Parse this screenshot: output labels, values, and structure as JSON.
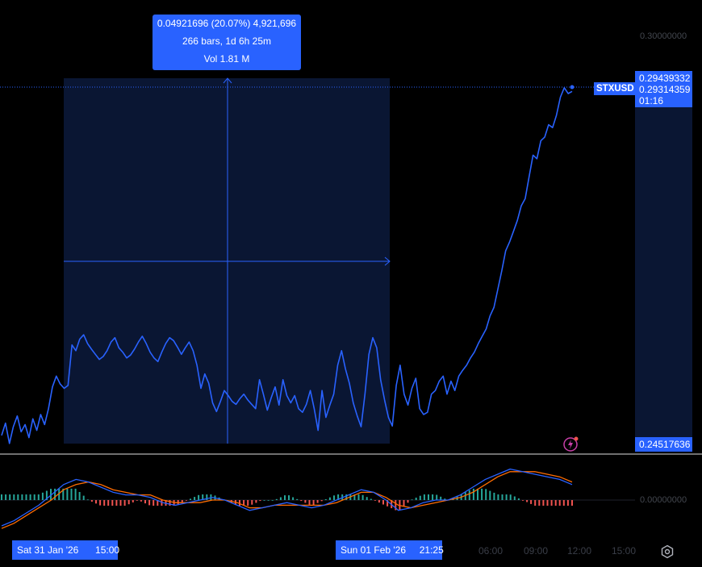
{
  "symbol": "STXUSD",
  "last_price": "0.29439332",
  "bid_price": "0.29314359",
  "countdown": "01:16",
  "low_price": "0.24517636",
  "measure": {
    "line1": "0.04921696 (20.07%) 4,921,696",
    "line2": "266 bars, 1d 6h 25m",
    "line3": "Vol 1.81 M"
  },
  "axis": {
    "top_label": "0.30000000",
    "macd_zero": "0.00000000"
  },
  "time_axis": {
    "start_date": "Sat 31 Jan '26",
    "start_time": "15:00",
    "end_date": "Sun 01 Feb '26",
    "end_time": "21:25",
    "ticks": [
      "06:00",
      "09:00",
      "12:00",
      "15:00"
    ]
  },
  "colors": {
    "price_line": "#2962ff",
    "macd_line": "#2962ff",
    "signal_line": "#ff6d00",
    "hist_pos": "#26a69a",
    "hist_neg": "#ef5350",
    "selection": "#0a1633",
    "accent": "#2962ff"
  },
  "chart_data": {
    "type": "line",
    "series": [
      {
        "name": "STXUSD",
        "values": [
          0.2463,
          0.248,
          0.2452,
          0.2475,
          0.249,
          0.2468,
          0.2478,
          0.246,
          0.2486,
          0.247,
          0.2492,
          0.2478,
          0.25,
          0.253,
          0.2545,
          0.2534,
          0.2528,
          0.2532,
          0.2588,
          0.258,
          0.2596,
          0.2602,
          0.259,
          0.2582,
          0.2575,
          0.2568,
          0.2572,
          0.258,
          0.2592,
          0.2598,
          0.2584,
          0.2578,
          0.257,
          0.2574,
          0.2582,
          0.2592,
          0.26,
          0.259,
          0.2578,
          0.257,
          0.2565,
          0.2578,
          0.259,
          0.2598,
          0.2594,
          0.2585,
          0.2575,
          0.2584,
          0.2592,
          0.258,
          0.256,
          0.2528,
          0.2548,
          0.2535,
          0.2508,
          0.2496,
          0.251,
          0.2525,
          0.2518,
          0.251,
          0.2506,
          0.2514,
          0.252,
          0.2512,
          0.2506,
          0.25,
          0.254,
          0.252,
          0.2498,
          0.2515,
          0.253,
          0.2505,
          0.254,
          0.2518,
          0.2508,
          0.2518,
          0.25,
          0.2495,
          0.2506,
          0.2525,
          0.25,
          0.247,
          0.2525,
          0.2488,
          0.2505,
          0.252,
          0.256,
          0.258,
          0.2555,
          0.2535,
          0.2508,
          0.249,
          0.2475,
          0.252,
          0.2575,
          0.2598,
          0.2584,
          0.254,
          0.2512,
          0.2488,
          0.2476,
          0.2532,
          0.256,
          0.252,
          0.2505,
          0.2528,
          0.2542,
          0.25,
          0.2492,
          0.2495,
          0.252,
          0.2525,
          0.2538,
          0.2545,
          0.252,
          0.2538,
          0.2525,
          0.2545,
          0.2553,
          0.256,
          0.257,
          0.2578,
          0.259,
          0.26,
          0.261,
          0.2628,
          0.264,
          0.2665,
          0.269,
          0.2718,
          0.273,
          0.2745,
          0.276,
          0.278,
          0.279,
          0.282,
          0.285,
          0.2845,
          0.287,
          0.2875,
          0.2892,
          0.2888,
          0.2905,
          0.293,
          0.2943,
          0.2935,
          0.2938
        ]
      },
      {
        "name": "MACD",
        "values": [
          -0.001,
          -0.0008,
          -0.0005,
          -0.0002,
          0.0002,
          0.0006,
          0.0008,
          0.0007,
          0.0005,
          0.0003,
          0.0002,
          0.0002,
          0.0001,
          -0.0001,
          -0.0002,
          -0.0001,
          0.0,
          0.0001,
          0.0,
          -0.0002,
          -0.0004,
          -0.0003,
          -0.0002,
          -0.0001,
          -0.0002,
          -0.0003,
          -0.0002,
          0.0,
          0.0002,
          0.0004,
          0.0003,
          0.0,
          -0.0004,
          -0.0003,
          -0.0001,
          0.0,
          0.0,
          0.0002,
          0.0005,
          0.0008,
          0.001,
          0.0012,
          0.0011,
          0.001,
          0.0009,
          0.0008,
          0.0006
        ]
      },
      {
        "name": "Signal",
        "values": [
          -0.0011,
          -0.0009,
          -0.0006,
          -0.0003,
          0.0,
          0.0004,
          0.0006,
          0.0007,
          0.0006,
          0.0004,
          0.0003,
          0.0002,
          0.0002,
          0.0,
          -0.0001,
          -0.0001,
          -0.0001,
          0.0,
          0.0,
          -0.0001,
          -0.0003,
          -0.0003,
          -0.0002,
          -0.0002,
          -0.0002,
          -0.0002,
          -0.0002,
          -0.0001,
          0.0001,
          0.0003,
          0.0003,
          0.0001,
          -0.0002,
          -0.0003,
          -0.0002,
          -0.0001,
          0.0,
          0.0001,
          0.0003,
          0.0006,
          0.0009,
          0.0011,
          0.0011,
          0.0011,
          0.001,
          0.0009,
          0.0007
        ]
      }
    ],
    "ylim": [
      0.2452,
      0.3
    ]
  }
}
